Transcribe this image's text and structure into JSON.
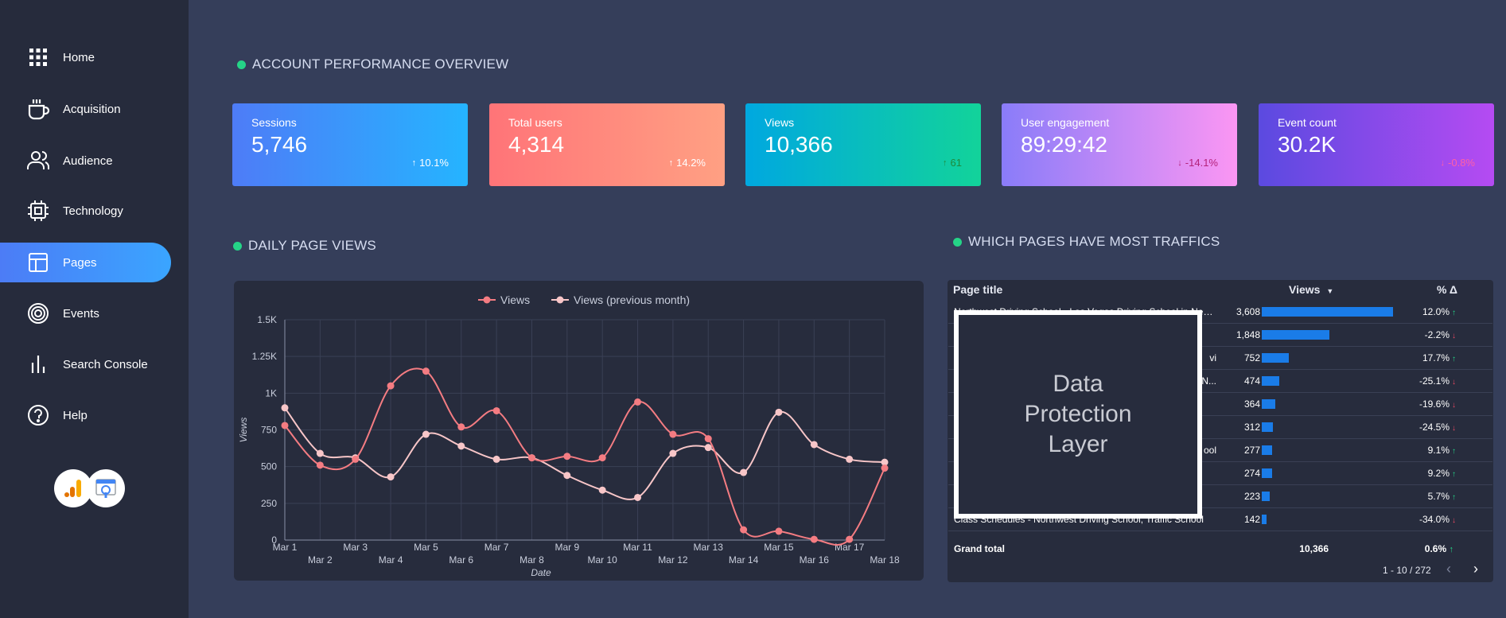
{
  "sidebar": {
    "items": [
      {
        "label": "Home",
        "icon": "grid-icon"
      },
      {
        "label": "Acquisition",
        "icon": "coffee-cup-icon"
      },
      {
        "label": "Audience",
        "icon": "users-icon"
      },
      {
        "label": "Technology",
        "icon": "cpu-chip-icon"
      },
      {
        "label": "Pages",
        "icon": "layout-icon",
        "active": true
      },
      {
        "label": "Events",
        "icon": "target-icon"
      },
      {
        "label": "Search Console",
        "icon": "bar-chart-icon"
      },
      {
        "label": "Help",
        "icon": "help-circle-icon"
      }
    ]
  },
  "overview": {
    "title": "ACCOUNT PERFORMANCE OVERVIEW",
    "cards": [
      {
        "label": "Sessions",
        "value": "5,746",
        "delta": "10.1%",
        "direction": "up",
        "delta_color": "#ffffff",
        "gradient": [
          "#4e7cf7",
          "#25b4ff"
        ]
      },
      {
        "label": "Total users",
        "value": "4,314",
        "delta": "14.2%",
        "direction": "up",
        "delta_color": "#ffffff",
        "gradient": [
          "#ff7478",
          "#ffa083"
        ]
      },
      {
        "label": "Views",
        "value": "10,366",
        "delta": "61",
        "direction": "up",
        "delta_color": "#1f8a3c",
        "gradient": [
          "#00a8e0",
          "#12d39a"
        ]
      },
      {
        "label": "User engagement",
        "value": "89:29:42",
        "delta": "-14.1%",
        "direction": "down",
        "delta_color": "#b3227a",
        "gradient": [
          "#8a7cf9",
          "#fb96f3"
        ]
      },
      {
        "label": "Event count",
        "value": "30.2K",
        "delta": "-0.8%",
        "direction": "down",
        "delta_color": "#ff5fa8",
        "gradient": [
          "#5b4ae0",
          "#b54bf2"
        ]
      }
    ]
  },
  "daily": {
    "title": "DAILY PAGE VIEWS"
  },
  "chart_data": {
    "type": "line",
    "xlabel": "Date",
    "ylabel": "Views",
    "ylim": [
      0,
      1500
    ],
    "yticks": [
      "0",
      "250",
      "500",
      "750",
      "1K",
      "1.25K",
      "1.5K"
    ],
    "categories": [
      "Mar 1",
      "Mar 2",
      "Mar 3",
      "Mar 4",
      "Mar 5",
      "Mar 6",
      "Mar 7",
      "Mar 8",
      "Mar 9",
      "Mar 10",
      "Mar 11",
      "Mar 12",
      "Mar 13",
      "Mar 14",
      "Mar 15",
      "Mar 16",
      "Mar 17",
      "Mar 18"
    ],
    "series": [
      {
        "name": "Views",
        "color": "#f47c82",
        "values": [
          780,
          510,
          550,
          1050,
          1150,
          770,
          880,
          560,
          570,
          560,
          940,
          720,
          690,
          70,
          60,
          5,
          5,
          490
        ]
      },
      {
        "name": "Views (previous month)",
        "color": "#f8c6c8",
        "values": [
          900,
          590,
          560,
          430,
          720,
          640,
          550,
          560,
          440,
          340,
          290,
          590,
          630,
          460,
          870,
          650,
          550,
          530
        ]
      }
    ],
    "grid": true,
    "legend": "top-center"
  },
  "pages": {
    "title": "WHICH PAGES HAVE MOST TRAFFICS",
    "col_page": "Page title",
    "col_views": "Views",
    "col_delta": "% Δ",
    "rows": [
      {
        "title": "Northwest Driving School - Las Vegas Driving School in Neva...",
        "views": "3,608",
        "views_num": 3608,
        "delta": "12.0%",
        "dir": "up"
      },
      {
        "title": "",
        "views": "1,848",
        "views_num": 1848,
        "delta": "-2.2%",
        "dir": "down"
      },
      {
        "title": "vi",
        "views": "752",
        "views_num": 752,
        "delta": "17.7%",
        "dir": "up"
      },
      {
        "title": "N...",
        "views": "474",
        "views_num": 474,
        "delta": "-25.1%",
        "dir": "down"
      },
      {
        "title": "",
        "views": "364",
        "views_num": 364,
        "delta": "-19.6%",
        "dir": "down"
      },
      {
        "title": "",
        "views": "312",
        "views_num": 312,
        "delta": "-24.5%",
        "dir": "down"
      },
      {
        "title": "ool",
        "views": "277",
        "views_num": 277,
        "delta": "9.1%",
        "dir": "up"
      },
      {
        "title": "",
        "views": "274",
        "views_num": 274,
        "delta": "9.2%",
        "dir": "up"
      },
      {
        "title": "",
        "views": "223",
        "views_num": 223,
        "delta": "5.7%",
        "dir": "up"
      },
      {
        "title": "Class Schedules - Northwest Driving School, Traffic School",
        "views": "142",
        "views_num": 142,
        "delta": "-34.0%",
        "dir": "down"
      }
    ],
    "total_label": "Grand total",
    "total_views": "10,366",
    "total_delta": "0.6%",
    "pagination": "1 - 10 / 272",
    "overlay_text": "Data Protection Layer"
  }
}
